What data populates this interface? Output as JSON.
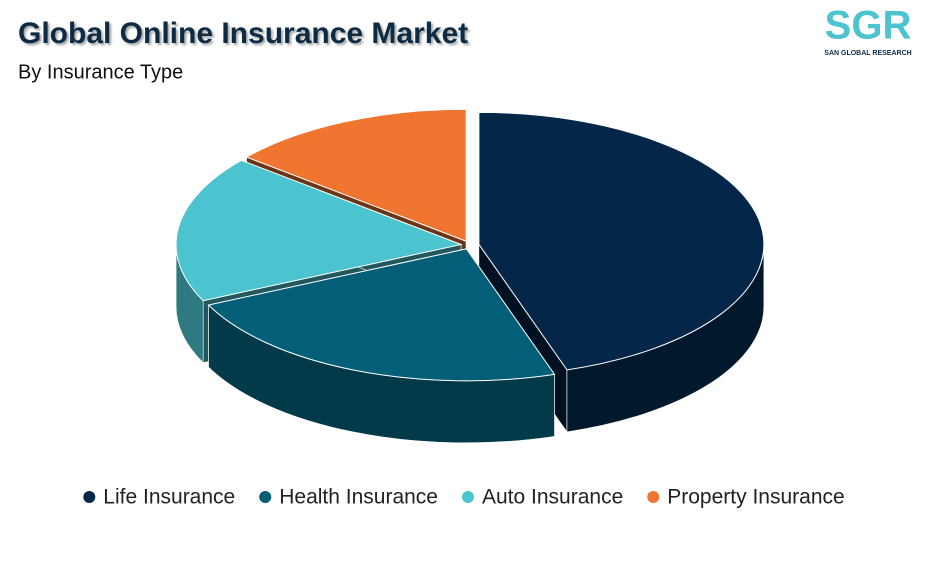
{
  "chart_data": {
    "type": "pie3d",
    "title": "Global Online Insurance Market",
    "subtitle": "By Insurance Type",
    "categories": [
      "Life Insurance",
      "Health Insurance",
      "Auto Insurance",
      "Property Insurance"
    ],
    "values": [
      45,
      23,
      18,
      14
    ],
    "colors": [
      "#032649",
      "#035e78",
      "#4bc4cf",
      "#ef7530"
    ],
    "legend": "bottom"
  },
  "logo": {
    "mark": "SGR",
    "name": "SAN GLOBAL RESEARCH"
  }
}
